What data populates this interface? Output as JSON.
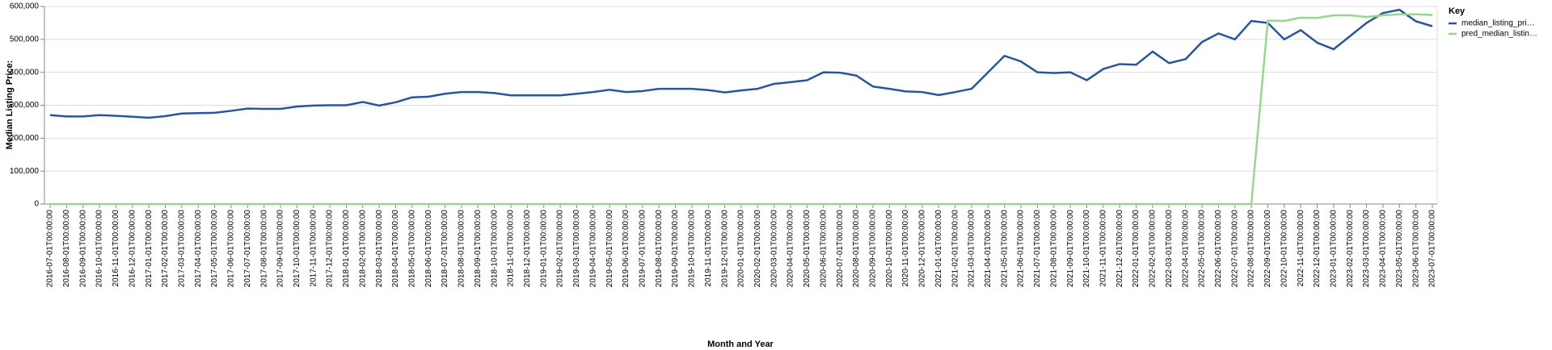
{
  "chart_data": {
    "type": "line",
    "xlabel": "Month and Year",
    "ylabel": "Median Listing Price:",
    "legend_title": "Key",
    "legend_position": "right",
    "grid": true,
    "categories": [
      "2016-07-01T00:00:00",
      "2016-08-01T00:00:00",
      "2016-09-01T00:00:00",
      "2016-10-01T00:00:00",
      "2016-11-01T00:00:00",
      "2016-12-01T00:00:00",
      "2017-01-01T00:00:00",
      "2017-02-01T00:00:00",
      "2017-03-01T00:00:00",
      "2017-04-01T00:00:00",
      "2017-05-01T00:00:00",
      "2017-06-01T00:00:00",
      "2017-07-01T00:00:00",
      "2017-08-01T00:00:00",
      "2017-09-01T00:00:00",
      "2017-10-01T00:00:00",
      "2017-11-01T00:00:00",
      "2017-12-01T00:00:00",
      "2018-01-01T00:00:00",
      "2018-02-01T00:00:00",
      "2018-03-01T00:00:00",
      "2018-04-01T00:00:00",
      "2018-05-01T00:00:00",
      "2018-06-01T00:00:00",
      "2018-07-01T00:00:00",
      "2018-08-01T00:00:00",
      "2018-09-01T00:00:00",
      "2018-10-01T00:00:00",
      "2018-11-01T00:00:00",
      "2018-12-01T00:00:00",
      "2019-01-01T00:00:00",
      "2019-02-01T00:00:00",
      "2019-03-01T00:00:00",
      "2019-04-01T00:00:00",
      "2019-05-01T00:00:00",
      "2019-06-01T00:00:00",
      "2019-07-01T00:00:00",
      "2019-08-01T00:00:00",
      "2019-09-01T00:00:00",
      "2019-10-01T00:00:00",
      "2019-11-01T00:00:00",
      "2019-12-01T00:00:00",
      "2020-01-01T00:00:00",
      "2020-02-01T00:00:00",
      "2020-03-01T00:00:00",
      "2020-04-01T00:00:00",
      "2020-05-01T00:00:00",
      "2020-06-01T00:00:00",
      "2020-07-01T00:00:00",
      "2020-08-01T00:00:00",
      "2020-09-01T00:00:00",
      "2020-10-01T00:00:00",
      "2020-11-01T00:00:00",
      "2020-12-01T00:00:00",
      "2021-01-01T00:00:00",
      "2021-02-01T00:00:00",
      "2021-03-01T00:00:00",
      "2021-04-01T00:00:00",
      "2021-05-01T00:00:00",
      "2021-06-01T00:00:00",
      "2021-07-01T00:00:00",
      "2021-08-01T00:00:00",
      "2021-09-01T00:00:00",
      "2021-10-01T00:00:00",
      "2021-11-01T00:00:00",
      "2021-12-01T00:00:00",
      "2022-01-01T00:00:00",
      "2022-02-01T00:00:00",
      "2022-03-01T00:00:00",
      "2022-04-01T00:00:00",
      "2022-05-01T00:00:00",
      "2022-06-01T00:00:00",
      "2022-07-01T00:00:00",
      "2022-08-01T00:00:00",
      "2022-09-01T00:00:00",
      "2022-10-01T00:00:00",
      "2022-11-01T00:00:00",
      "2022-12-01T00:00:00",
      "2023-01-01T00:00:00",
      "2023-02-01T00:00:00",
      "2023-03-01T00:00:00",
      "2023-04-01T00:00:00",
      "2023-05-01T00:00:00",
      "2023-06-01T00:00:00",
      "2023-07-01T00:00:00"
    ],
    "series": [
      {
        "name": "median_listing_pri…",
        "color": "#2a5599",
        "values": [
          270000,
          266000,
          266000,
          270000,
          268000,
          265000,
          262000,
          267000,
          275000,
          276000,
          277000,
          283000,
          290000,
          289000,
          289000,
          296000,
          299000,
          300000,
          300000,
          310000,
          299000,
          309000,
          324000,
          326000,
          335000,
          340000,
          340000,
          337000,
          330000,
          330000,
          330000,
          330000,
          335000,
          340000,
          347000,
          340000,
          343000,
          350000,
          350000,
          350000,
          346000,
          339000,
          345000,
          350000,
          365000,
          370000,
          376000,
          400000,
          399000,
          390000,
          357000,
          350000,
          342000,
          340000,
          331000,
          340000,
          350000,
          400000,
          450000,
          433000,
          400000,
          398000,
          400000,
          376000,
          410000,
          425000,
          423000,
          463000,
          428000,
          440000,
          492000,
          518000,
          500000,
          556000,
          550000,
          500000,
          528000,
          490000,
          470000,
          510000,
          550000,
          580000,
          590000,
          555000,
          540000
        ]
      },
      {
        "name": "pred_median_listin…",
        "color": "#98d68f",
        "values": [
          0,
          0,
          0,
          0,
          0,
          0,
          0,
          0,
          0,
          0,
          0,
          0,
          0,
          0,
          0,
          0,
          0,
          0,
          0,
          0,
          0,
          0,
          0,
          0,
          0,
          0,
          0,
          0,
          0,
          0,
          0,
          0,
          0,
          0,
          0,
          0,
          0,
          0,
          0,
          0,
          0,
          0,
          0,
          0,
          0,
          0,
          0,
          0,
          0,
          0,
          0,
          0,
          0,
          0,
          0,
          0,
          0,
          0,
          0,
          0,
          0,
          0,
          0,
          0,
          0,
          0,
          0,
          0,
          0,
          0,
          0,
          0,
          0,
          0,
          557000,
          556000,
          566000,
          565000,
          573000,
          573000,
          568000,
          573000,
          576000,
          576000,
          574000
        ]
      }
    ],
    "ylim": [
      0,
      600000
    ],
    "yticks": [
      0,
      {
        "value": 100000,
        "label": "100,000"
      },
      {
        "value": 200000,
        "label": "200,000"
      },
      {
        "value": 300000,
        "label": "300,000"
      },
      {
        "value": 400000,
        "label": "400,000"
      },
      {
        "value": 500000,
        "label": "500,000"
      },
      {
        "value": 600000,
        "label": "600,000"
      }
    ]
  }
}
